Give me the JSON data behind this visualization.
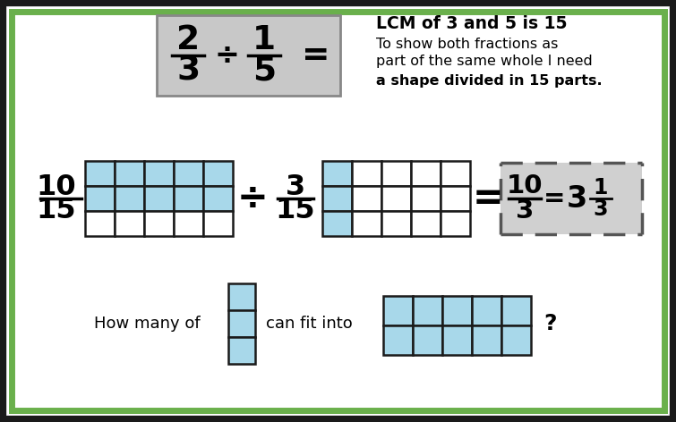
{
  "bg_color": "#ffffff",
  "outer_border_color": "#1a1a1a",
  "inner_border_color": "#6ab04c",
  "cell_blue": "#a8d8ea",
  "grid_line_color": "#1a1a1a",
  "top_box_bg": "#c8c8c8",
  "dashed_box_bg": "#d0d0d0",
  "text_color": "#000000",
  "title_text1": "LCM of 3 and 5 is 15",
  "title_text2": "To show both fractions as",
  "title_text3": "part of the same whole I need",
  "title_text4": "a shape divided in 15 parts.",
  "bottom_text1": "How many of",
  "bottom_text2": "can fit into",
  "bottom_text3": "?"
}
